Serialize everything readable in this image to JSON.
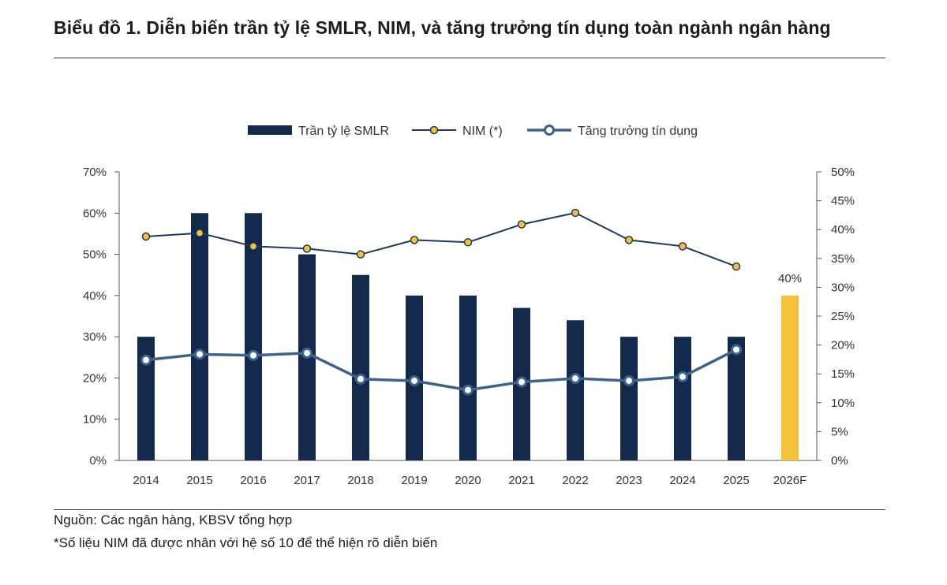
{
  "title": "Biểu đồ 1. Diễn biến trần tỷ lệ SMLR, NIM, và tăng trưởng tín dụng toàn ngành ngân hàng",
  "source_note": "Nguồn: Các ngân hàng, KBSV tổng hợp",
  "footnote": "*Số liệu NIM đã được nhân với hệ số 10 để thể hiện rõ diễn biến",
  "colors": {
    "bar": "#13294b",
    "bar_forecast": "#f5c13b",
    "nim_line": "#1f3a5f",
    "nim_marker": "#f5c13b",
    "credit_line": "#3f6288",
    "credit_marker_fill": "#ffffff"
  },
  "chart_data": {
    "type": "bar+line",
    "categories": [
      "2014",
      "2015",
      "2016",
      "2017",
      "2018",
      "2019",
      "2020",
      "2021",
      "2022",
      "2023",
      "2024",
      "2025",
      "2026F"
    ],
    "legend_position": "top-center",
    "grid": false,
    "y_left": {
      "ticks": [
        "0%",
        "10%",
        "20%",
        "30%",
        "40%",
        "50%",
        "60%",
        "70%"
      ],
      "range": [
        0,
        70
      ]
    },
    "y_right": {
      "ticks": [
        "0%",
        "5%",
        "10%",
        "15%",
        "20%",
        "25%",
        "30%",
        "35%",
        "40%",
        "45%",
        "50%"
      ],
      "range": [
        0,
        50
      ]
    },
    "series": [
      {
        "name": "Trần tỷ lệ SMLR",
        "kind": "bar",
        "axis": "left",
        "values": [
          30,
          60,
          60,
          50,
          45,
          40,
          40,
          37,
          34,
          30,
          30,
          30,
          40
        ],
        "forecast_index": 12,
        "data_labels": {
          "12": "40%"
        }
      },
      {
        "name": "NIM (*)",
        "kind": "line",
        "axis": "right",
        "values": [
          38.8,
          39.4,
          37.1,
          36.7,
          35.7,
          38.2,
          37.8,
          40.9,
          42.9,
          38.2,
          37.1,
          33.6,
          null
        ]
      },
      {
        "name": "Tăng trưởng tín dụng",
        "kind": "line",
        "axis": "right",
        "values": [
          17.4,
          18.4,
          18.2,
          18.6,
          14.1,
          13.8,
          12.2,
          13.6,
          14.2,
          13.8,
          14.5,
          19.2,
          null
        ]
      }
    ]
  }
}
